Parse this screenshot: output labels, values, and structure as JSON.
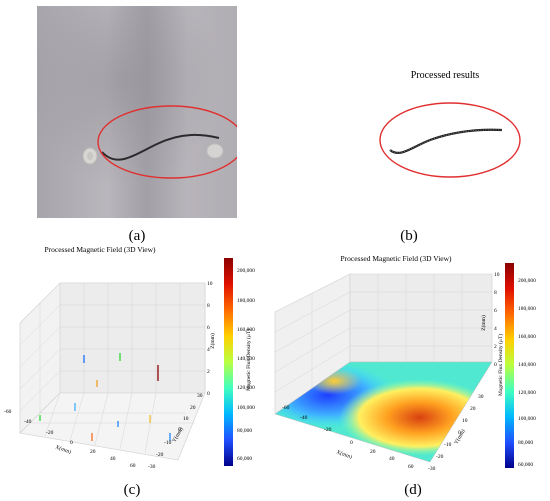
{
  "panels": {
    "a": {
      "label": "(a)"
    },
    "b": {
      "label": "(b)",
      "title": "Processed results"
    },
    "c": {
      "label": "(c)",
      "title": "Processed Magnetic Field (3D View)",
      "x_label": "X(mm)",
      "y_label": "Y(mm)",
      "z_label": "Z(mm)",
      "x_ticks": [
        "-60",
        "-40",
        "-20",
        "0",
        "20",
        "40",
        "60"
      ],
      "y_ticks": [
        "-30",
        "-20",
        "-10",
        "0",
        "10",
        "20",
        "30"
      ],
      "z_ticks": [
        "0",
        "2",
        "4",
        "6",
        "8",
        "10"
      ],
      "colorbar_label": "Magnetic Flux Density (μT)",
      "colorbar_ticks": [
        "200,000",
        "180,000",
        "160,000",
        "140,000",
        "120,000",
        "100,000",
        "80,000",
        "60,000"
      ],
      "colors": {
        "high": "#8b0000",
        "low": "#00008b"
      }
    },
    "d": {
      "label": "(d)",
      "title": "Processed Magnetic Field (3D View)",
      "x_label": "X(mm)",
      "y_label": "Y(mm)",
      "z_label": "Z(mm)",
      "x_ticks": [
        "-60",
        "-40",
        "-20",
        "0",
        "20",
        "40",
        "60"
      ],
      "y_ticks": [
        "-30",
        "-20",
        "-10",
        "0",
        "10",
        "20",
        "30"
      ],
      "z_ticks": [
        "0",
        "2",
        "4",
        "6",
        "8",
        "10"
      ],
      "colorbar_label": "Magnetic Flux Density (μT)",
      "colorbar_ticks": [
        "200,000",
        "180,000",
        "160,000",
        "140,000",
        "120,000",
        "100,000",
        "80,000",
        "60,000"
      ]
    }
  }
}
